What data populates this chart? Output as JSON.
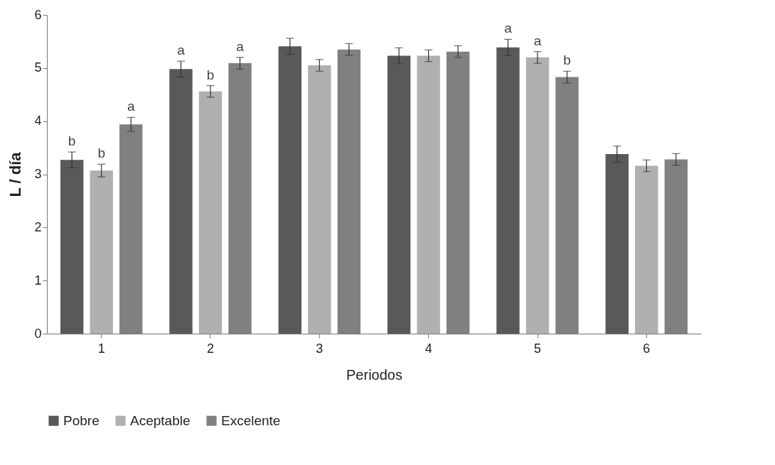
{
  "chart_data": {
    "type": "bar",
    "xlabel": "Periodos",
    "ylabel": "L / día",
    "categories": [
      "1",
      "2",
      "3",
      "4",
      "5",
      "6"
    ],
    "ylim": [
      0,
      6
    ],
    "yticks": [
      0,
      1,
      2,
      3,
      4,
      5,
      6
    ],
    "grid": false,
    "legend": "bottom",
    "series": [
      {
        "name": "Pobre",
        "color": "#595959",
        "values": [
          3.27,
          4.98,
          5.41,
          5.23,
          5.39,
          3.38
        ],
        "errors": [
          0.15,
          0.15,
          0.15,
          0.15,
          0.15,
          0.15
        ],
        "value_labels": [
          "b",
          "a",
          null,
          null,
          "a",
          null
        ]
      },
      {
        "name": "Aceptable",
        "color": "#b0b0b0",
        "values": [
          3.07,
          4.56,
          5.05,
          5.23,
          5.2,
          3.16
        ],
        "errors": [
          0.12,
          0.11,
          0.11,
          0.11,
          0.11,
          0.11
        ],
        "value_labels": [
          "b",
          "b",
          null,
          null,
          "a",
          null
        ]
      },
      {
        "name": "Excelente",
        "color": "#808080",
        "values": [
          3.94,
          5.09,
          5.35,
          5.31,
          4.83,
          3.28
        ],
        "errors": [
          0.13,
          0.11,
          0.11,
          0.11,
          0.11,
          0.11
        ],
        "value_labels": [
          "a",
          "a",
          null,
          null,
          "b",
          null
        ]
      }
    ]
  }
}
